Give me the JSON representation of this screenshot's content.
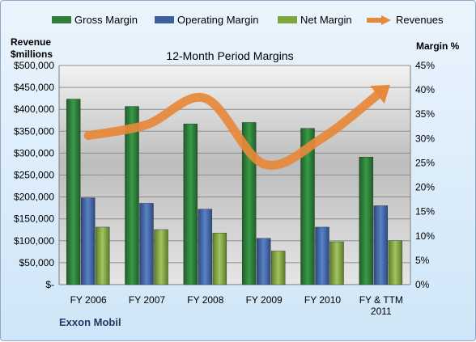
{
  "chart_data": {
    "type": "bar",
    "title": "12-Month Period Margins",
    "left_axis_title": [
      "Revenue",
      "$millions"
    ],
    "right_axis_title": "Margin %",
    "company": "Exxon Mobil",
    "categories": [
      [
        "FY 2006"
      ],
      [
        "FY 2007"
      ],
      [
        "FY 2008"
      ],
      [
        "FY 2009"
      ],
      [
        "FY 2010"
      ],
      [
        "FY & TTM",
        "2011"
      ]
    ],
    "left_ticks": [
      "$-",
      "$50,000",
      "$100,000",
      "$150,000",
      "$200,000",
      "$250,000",
      "$300,000",
      "$350,000",
      "$400,000",
      "$450,000",
      "$500,000"
    ],
    "right_ticks": [
      "0%",
      "5%",
      "10%",
      "15%",
      "20%",
      "25%",
      "30%",
      "35%",
      "40%",
      "45%"
    ],
    "ylim_left": [
      0,
      500000
    ],
    "ylim_right": [
      0,
      45
    ],
    "legend_position": "top",
    "series": [
      {
        "name": "Gross Margin",
        "type": "bar",
        "axis": "right",
        "color": "#2e7d3a",
        "values": [
          38.1,
          36.6,
          33.0,
          33.3,
          32.1,
          26.2
        ]
      },
      {
        "name": "Operating Margin",
        "type": "bar",
        "axis": "right",
        "color": "#3c5f9e",
        "values": [
          17.8,
          16.7,
          15.5,
          9.5,
          11.8,
          16.2
        ]
      },
      {
        "name": "Net Margin",
        "type": "bar",
        "axis": "right",
        "color": "#7fa53e",
        "values": [
          11.8,
          11.3,
          10.6,
          6.9,
          8.8,
          9.0
        ]
      },
      {
        "name": "Revenues",
        "type": "line",
        "axis": "left",
        "color": "#e8883a",
        "values": [
          340000,
          365000,
          425000,
          275000,
          335000,
          440000
        ]
      }
    ]
  }
}
